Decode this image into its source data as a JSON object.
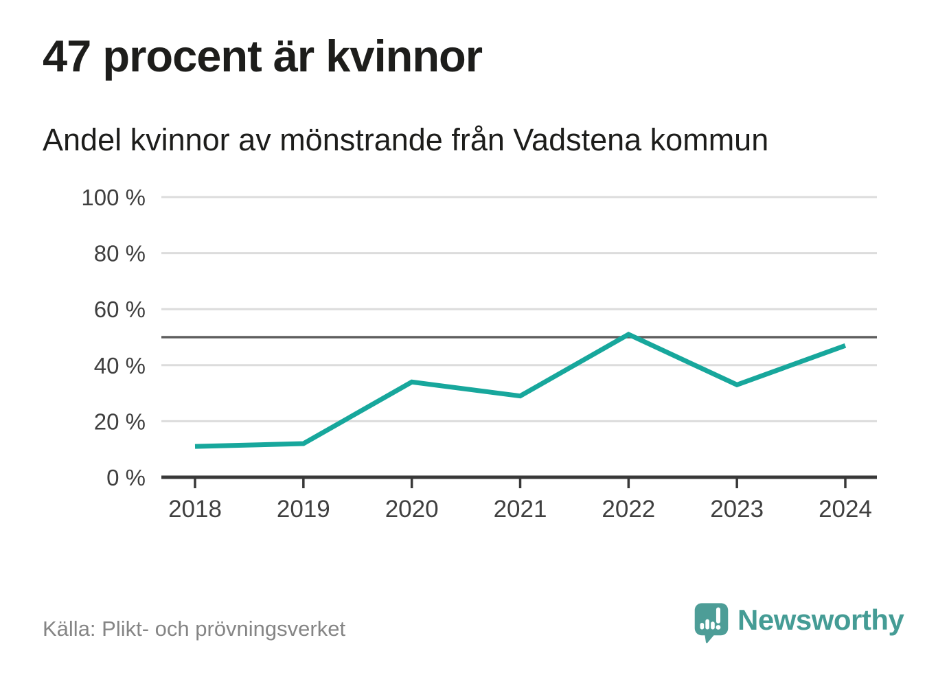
{
  "header": {
    "title": "47 procent är kvinnor",
    "subtitle": "Andel kvinnor av mönstrande från Vadstena kommun"
  },
  "footer": {
    "source": "Källa: Plikt- och prövningsverket",
    "brand": {
      "name": "Newsworthy",
      "icon": "speech-bubble-with-bar-chart-and-exclamation",
      "icon_color": "#4d9d97",
      "wordmark_color": "#459c95"
    }
  },
  "colors": {
    "line": "#17a79c",
    "gridline": "#dcdcdc",
    "axis": "#383838",
    "reference_line": "#5f5f5f",
    "tick_label": "#3f3f3f",
    "title_text": "#1d1d1b",
    "source_text": "#858585"
  },
  "chart_data": {
    "type": "line",
    "title": "47 procent är kvinnor",
    "subtitle": "Andel kvinnor av mönstrande från Vadstena kommun",
    "x": [
      2018,
      2019,
      2020,
      2021,
      2022,
      2023,
      2024
    ],
    "series": [
      {
        "name": "Andel kvinnor av mönstrande",
        "values": [
          11,
          12,
          34,
          29,
          51,
          33,
          47
        ]
      }
    ],
    "xlabel": "",
    "ylabel": "",
    "ylim": [
      0,
      100
    ],
    "yticks": [
      0,
      20,
      40,
      60,
      80,
      100
    ],
    "ytick_suffix": " %",
    "xtick_labels": [
      "2018",
      "2019",
      "2020",
      "2021",
      "2022",
      "2023",
      "2024"
    ],
    "reference_line": {
      "value": 50
    },
    "grid": "horizontal",
    "legend": "none"
  }
}
